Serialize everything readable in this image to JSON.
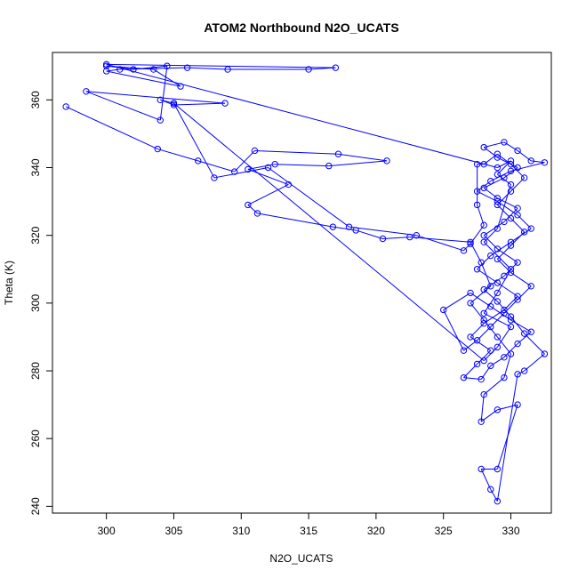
{
  "chart_data": {
    "type": "line",
    "title": "ATOM2 Northbound N2O_UCATS",
    "xlabel": "N2O_UCATS",
    "ylabel": "Theta (K)",
    "xlim": [
      296,
      333
    ],
    "ylim": [
      238,
      374
    ],
    "x_ticks": [
      300,
      305,
      310,
      315,
      320,
      325,
      330
    ],
    "y_ticks": [
      240,
      260,
      280,
      300,
      320,
      340,
      360
    ],
    "grid": false,
    "line_color": "#0000ff",
    "marker": "open-circle",
    "series": [
      {
        "values": [
          {
            "x": 297.0,
            "y": 358.0
          },
          {
            "x": 303.8,
            "y": 345.5
          },
          {
            "x": 306.8,
            "y": 342.0
          },
          {
            "x": 309.5,
            "y": 338.8
          },
          {
            "x": 311.0,
            "y": 345.0
          },
          {
            "x": 317.2,
            "y": 344.0
          },
          {
            "x": 320.8,
            "y": 342.0
          },
          {
            "x": 316.5,
            "y": 340.5
          },
          {
            "x": 312.5,
            "y": 341.0
          },
          {
            "x": 310.5,
            "y": 339.5
          },
          {
            "x": 313.5,
            "y": 335.0
          },
          {
            "x": 310.5,
            "y": 329.0
          },
          {
            "x": 311.2,
            "y": 326.5
          },
          {
            "x": 316.8,
            "y": 322.5
          },
          {
            "x": 318.5,
            "y": 321.5
          },
          {
            "x": 320.5,
            "y": 319.0
          },
          {
            "x": 322.5,
            "y": 319.5
          },
          {
            "x": 327.0,
            "y": 318.0
          },
          {
            "x": 327.8,
            "y": 312.0
          },
          {
            "x": 328.5,
            "y": 305.0
          },
          {
            "x": 327.0,
            "y": 300.0
          },
          {
            "x": 328.0,
            "y": 295.0
          },
          {
            "x": 329.0,
            "y": 290.0
          },
          {
            "x": 330.0,
            "y": 285.0
          },
          {
            "x": 329.5,
            "y": 278.0
          },
          {
            "x": 328.0,
            "y": 273.0
          },
          {
            "x": 327.8,
            "y": 265.0
          },
          {
            "x": 329.0,
            "y": 268.5
          },
          {
            "x": 330.5,
            "y": 270.0
          },
          {
            "x": 329.0,
            "y": 251.0
          },
          {
            "x": 327.8,
            "y": 251.0
          },
          {
            "x": 328.5,
            "y": 245.0
          },
          {
            "x": 329.0,
            "y": 241.5
          },
          {
            "x": 330.5,
            "y": 279.0
          },
          {
            "x": 331.0,
            "y": 280.0
          },
          {
            "x": 332.5,
            "y": 285.0
          },
          {
            "x": 331.0,
            "y": 291.0
          },
          {
            "x": 330.0,
            "y": 296.0
          },
          {
            "x": 329.0,
            "y": 300.5
          },
          {
            "x": 328.0,
            "y": 304.0
          },
          {
            "x": 329.5,
            "y": 308.0
          },
          {
            "x": 330.5,
            "y": 312.0
          },
          {
            "x": 329.0,
            "y": 316.0
          },
          {
            "x": 328.0,
            "y": 320.0
          },
          {
            "x": 329.5,
            "y": 324.0
          },
          {
            "x": 330.5,
            "y": 328.0
          },
          {
            "x": 329.0,
            "y": 331.0
          },
          {
            "x": 328.0,
            "y": 334.0
          },
          {
            "x": 329.5,
            "y": 337.0
          },
          {
            "x": 330.5,
            "y": 340.0
          },
          {
            "x": 329.0,
            "y": 343.0
          },
          {
            "x": 328.0,
            "y": 346.0
          },
          {
            "x": 329.5,
            "y": 347.5
          },
          {
            "x": 330.5,
            "y": 345.0
          },
          {
            "x": 331.5,
            "y": 342.0
          },
          {
            "x": 332.5,
            "y": 341.5
          },
          {
            "x": 330.0,
            "y": 339.0
          },
          {
            "x": 328.5,
            "y": 336.0
          },
          {
            "x": 327.5,
            "y": 333.0
          },
          {
            "x": 329.0,
            "y": 330.0
          },
          {
            "x": 330.5,
            "y": 326.0
          },
          {
            "x": 331.5,
            "y": 322.0
          },
          {
            "x": 330.0,
            "y": 318.0
          },
          {
            "x": 328.5,
            "y": 314.0
          },
          {
            "x": 327.5,
            "y": 310.0
          },
          {
            "x": 329.0,
            "y": 306.0
          },
          {
            "x": 330.5,
            "y": 302.0
          },
          {
            "x": 329.5,
            "y": 298.0
          },
          {
            "x": 328.0,
            "y": 294.0
          },
          {
            "x": 327.0,
            "y": 290.0
          },
          {
            "x": 328.5,
            "y": 286.0
          },
          {
            "x": 327.5,
            "y": 282.0
          },
          {
            "x": 326.5,
            "y": 278.0
          },
          {
            "x": 327.8,
            "y": 277.5
          },
          {
            "x": 328.5,
            "y": 281.5
          },
          {
            "x": 329.5,
            "y": 284.0
          },
          {
            "x": 330.5,
            "y": 288.0
          },
          {
            "x": 331.5,
            "y": 291.5
          },
          {
            "x": 330.0,
            "y": 295.0
          },
          {
            "x": 328.5,
            "y": 299.0
          },
          {
            "x": 327.0,
            "y": 303.0
          },
          {
            "x": 325.0,
            "y": 298.0
          },
          {
            "x": 326.5,
            "y": 286.0
          },
          {
            "x": 327.5,
            "y": 289.0
          },
          {
            "x": 328.5,
            "y": 293.0
          },
          {
            "x": 329.5,
            "y": 297.0
          },
          {
            "x": 330.5,
            "y": 301.0
          },
          {
            "x": 331.5,
            "y": 305.0
          },
          {
            "x": 330.0,
            "y": 309.0
          },
          {
            "x": 329.0,
            "y": 313.0
          },
          {
            "x": 330.0,
            "y": 317.0
          },
          {
            "x": 331.0,
            "y": 321.0
          },
          {
            "x": 330.0,
            "y": 325.0
          },
          {
            "x": 329.0,
            "y": 329.0
          },
          {
            "x": 330.0,
            "y": 333.0
          },
          {
            "x": 331.0,
            "y": 337.0
          },
          {
            "x": 330.0,
            "y": 341.0
          },
          {
            "x": 329.0,
            "y": 344.0
          },
          {
            "x": 328.0,
            "y": 341.0
          },
          {
            "x": 327.5,
            "y": 341.0
          },
          {
            "x": 327.5,
            "y": 329.0
          },
          {
            "x": 328.0,
            "y": 323.0
          },
          {
            "x": 327.0,
            "y": 317.5
          },
          {
            "x": 326.5,
            "y": 315.5
          },
          {
            "x": 323.0,
            "y": 320.0
          },
          {
            "x": 318.0,
            "y": 322.5
          },
          {
            "x": 312.0,
            "y": 340.0
          },
          {
            "x": 308.0,
            "y": 337.0
          },
          {
            "x": 305.0,
            "y": 359.0
          },
          {
            "x": 304.0,
            "y": 360.0
          },
          {
            "x": 305.0,
            "y": 358.5
          },
          {
            "x": 308.8,
            "y": 359.0
          },
          {
            "x": 298.5,
            "y": 362.5
          },
          {
            "x": 304.0,
            "y": 354.0
          },
          {
            "x": 304.5,
            "y": 370.0
          },
          {
            "x": 302.0,
            "y": 369.0
          },
          {
            "x": 300.0,
            "y": 370.0
          },
          {
            "x": 303.5,
            "y": 369.0
          },
          {
            "x": 305.5,
            "y": 364.0
          },
          {
            "x": 300.0,
            "y": 368.5
          },
          {
            "x": 301.0,
            "y": 369.0
          },
          {
            "x": 306.0,
            "y": 369.5
          },
          {
            "x": 309.0,
            "y": 369.0
          },
          {
            "x": 315.0,
            "y": 369.0
          },
          {
            "x": 317.0,
            "y": 369.5
          },
          {
            "x": 300.0,
            "y": 370.5
          },
          {
            "x": 329.0,
            "y": 340.0
          },
          {
            "x": 330.0,
            "y": 342.0
          },
          {
            "x": 329.0,
            "y": 338.0
          },
          {
            "x": 330.0,
            "y": 335.0
          },
          {
            "x": 329.0,
            "y": 322.0
          },
          {
            "x": 328.0,
            "y": 318.0
          },
          {
            "x": 330.0,
            "y": 310.0
          },
          {
            "x": 329.0,
            "y": 303.0
          },
          {
            "x": 328.0,
            "y": 297.0
          },
          {
            "x": 330.0,
            "y": 293.0
          },
          {
            "x": 329.0,
            "y": 287.0
          },
          {
            "x": 328.0,
            "y": 283.0
          },
          {
            "x": 305.0,
            "y": 359.0
          }
        ]
      }
    ]
  }
}
